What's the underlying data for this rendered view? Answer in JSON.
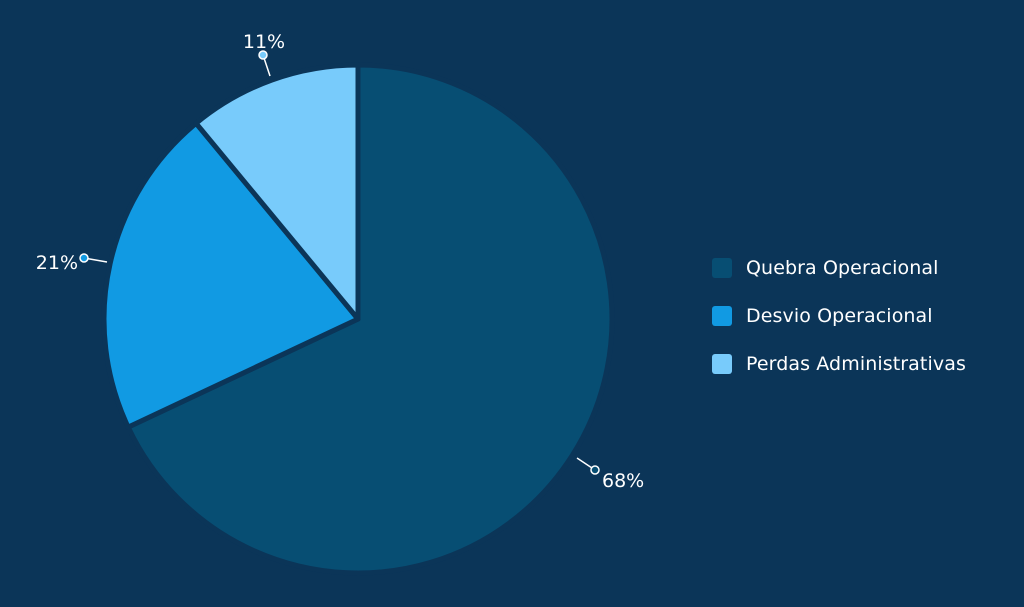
{
  "chart_data": {
    "type": "pie",
    "categories": [
      "Quebra Operacional",
      "Desvio Operacional",
      "Perdas Administrativas"
    ],
    "values": [
      68,
      21,
      11
    ],
    "value_labels": [
      "68%",
      "21%",
      "11%"
    ],
    "colors": [
      "#074e73",
      "#119ae3",
      "#78cbfb"
    ],
    "background": "#0b3558",
    "legend_position": "right"
  }
}
